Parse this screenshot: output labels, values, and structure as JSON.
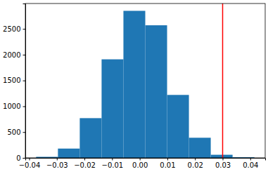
{
  "chart_data": {
    "type": "histogram",
    "bins": [
      -0.0375,
      -0.0296,
      -0.0217,
      -0.0138,
      -0.0059,
      0.002,
      0.0099,
      0.0178,
      0.0257,
      0.0336,
      0.0415
    ],
    "values": [
      20,
      180,
      770,
      1910,
      2850,
      2570,
      1220,
      390,
      60,
      12
    ],
    "color": "#1f77b4",
    "xlim": [
      -0.0414,
      0.0454
    ],
    "xticks": [
      {
        "value": -0.04,
        "label": "−0.04"
      },
      {
        "value": -0.03,
        "label": "−0.03"
      },
      {
        "value": -0.02,
        "label": "−0.02"
      },
      {
        "value": -0.01,
        "label": "−0.01"
      },
      {
        "value": 0,
        "label": "0.00"
      },
      0.01,
      0.02,
      0.03,
      0.04
    ],
    "ylim": [
      0,
      2992
    ],
    "yticks": [
      0,
      500,
      1000,
      1500,
      2000,
      2500
    ],
    "vline": {
      "x": 0.03,
      "color": "red"
    }
  }
}
